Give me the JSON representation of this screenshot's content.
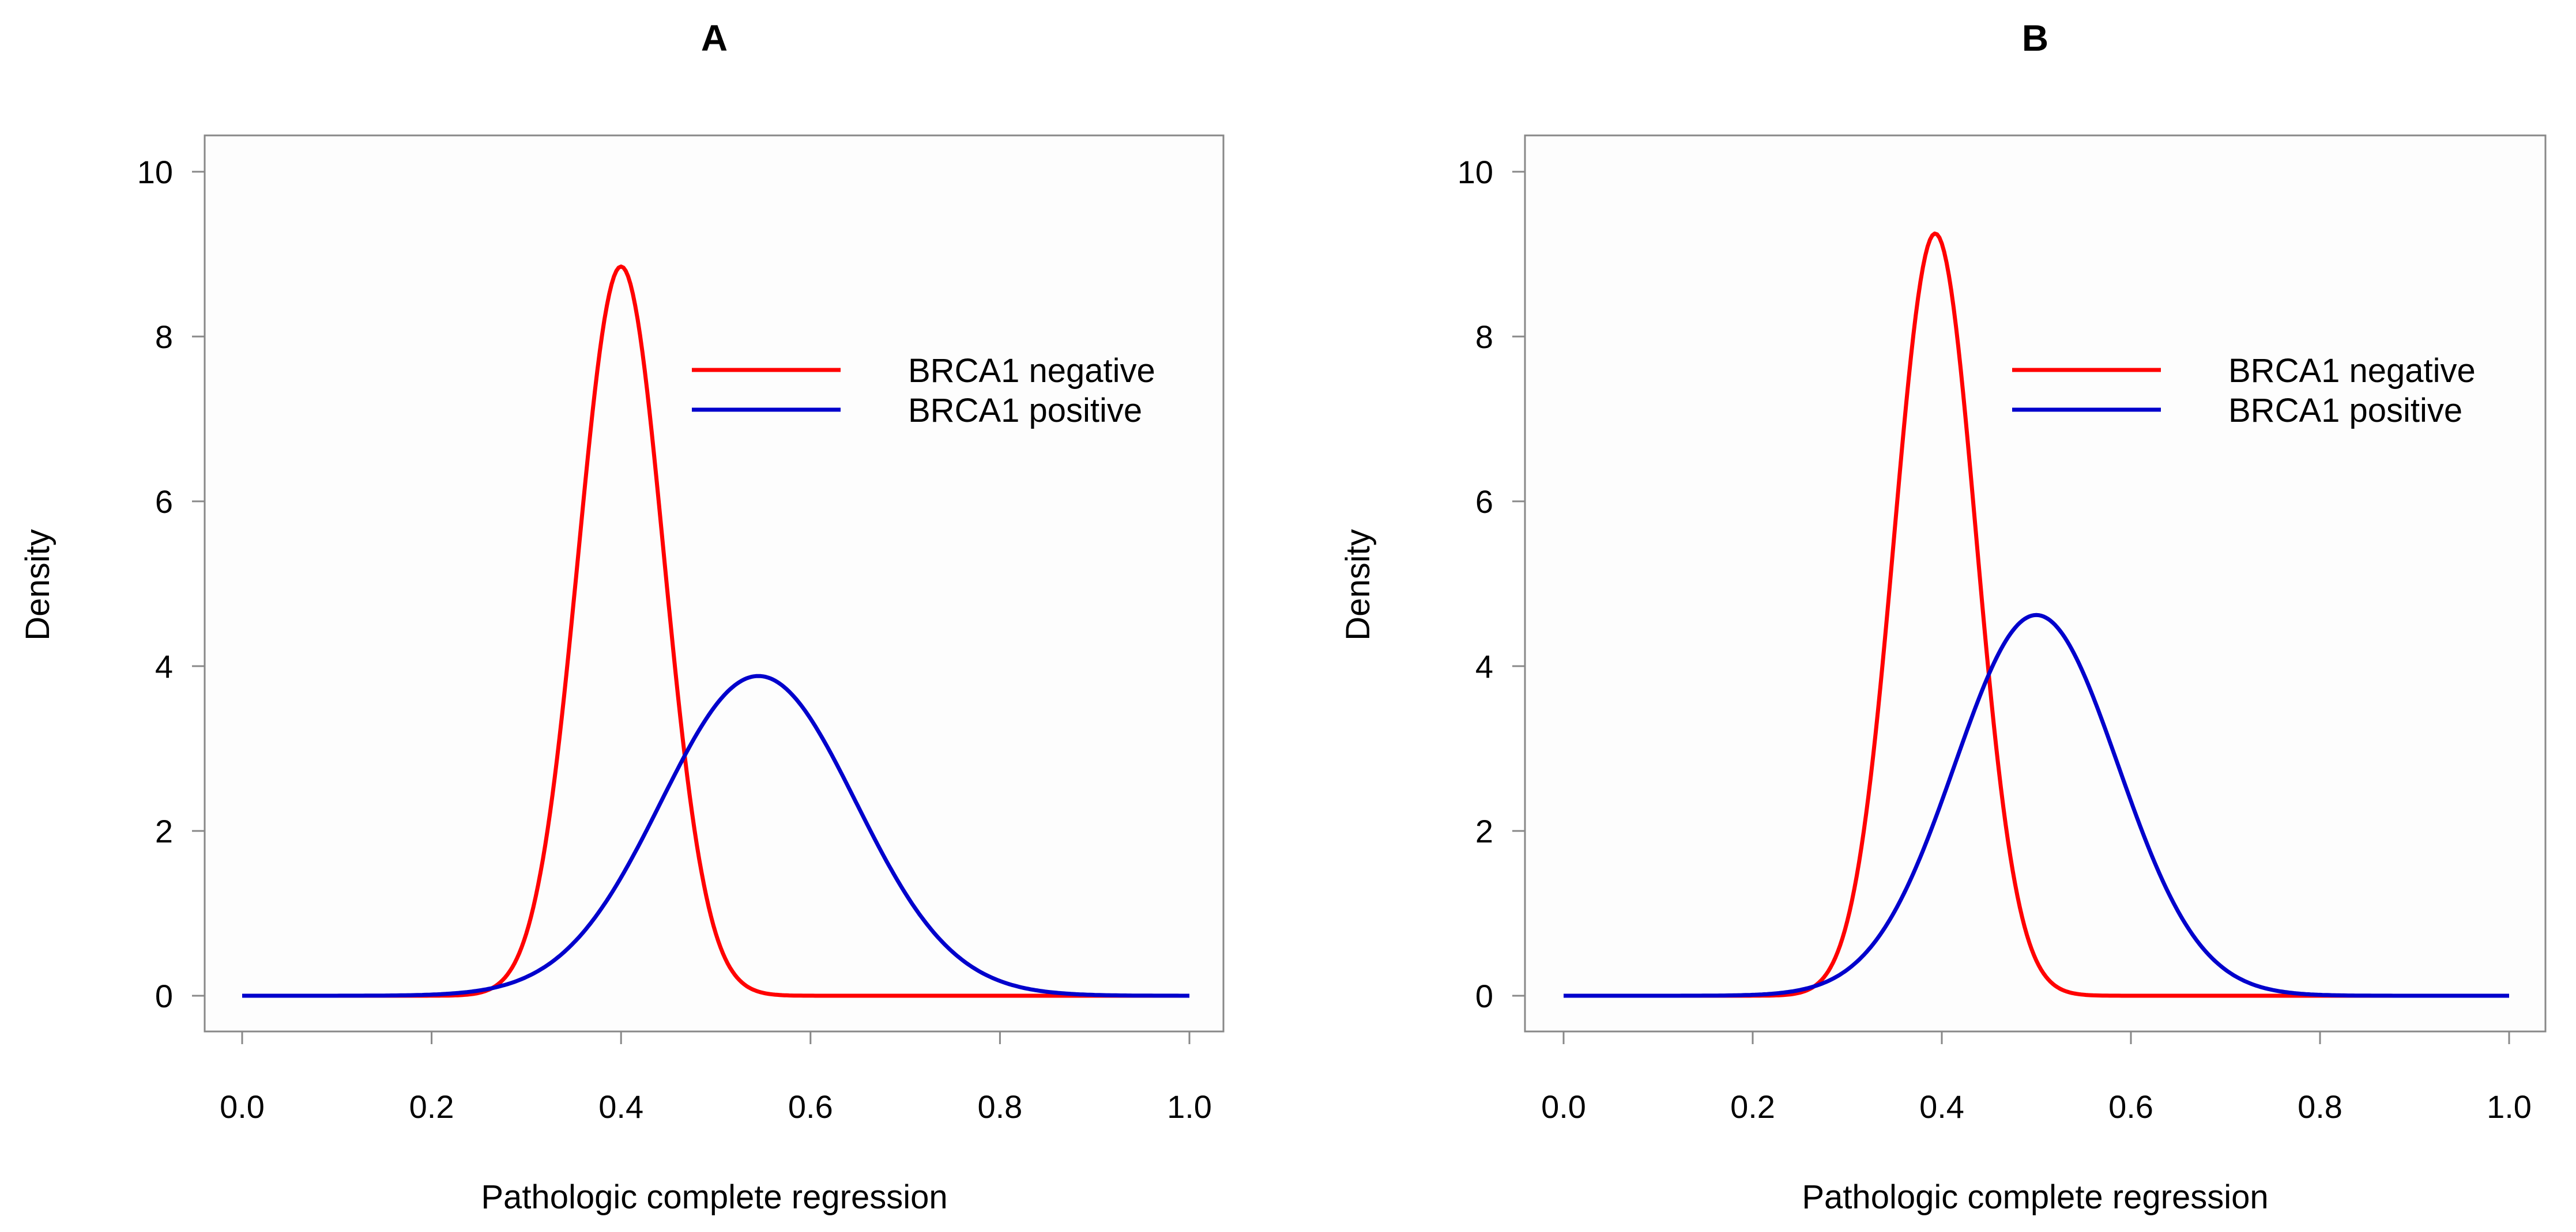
{
  "chart_data": [
    {
      "type": "line",
      "title": "A",
      "xlabel": "Pathologic complete regression",
      "ylabel": "Density",
      "xlim": [
        0.0,
        1.0
      ],
      "ylim": [
        0,
        10
      ],
      "xticks": [
        "0.0",
        "0.2",
        "0.4",
        "0.6",
        "0.8",
        "1.0"
      ],
      "yticks": [
        "0",
        "2",
        "4",
        "6",
        "8",
        "10"
      ],
      "legend_position": "top-right",
      "series": [
        {
          "name": "BRCA1 negative",
          "color": "#ff0000",
          "distribution": "normal",
          "mean": 0.4,
          "peak": 8.85,
          "support": [
            0.0,
            1.0
          ]
        },
        {
          "name": "BRCA1 positive",
          "color": "#0000cc",
          "distribution": "normal",
          "mean": 0.545,
          "peak": 3.88,
          "support": [
            0.0,
            1.0
          ]
        }
      ]
    },
    {
      "type": "line",
      "title": "B",
      "xlabel": "Pathologic complete regression",
      "ylabel": "Density",
      "xlim": [
        0.0,
        1.0
      ],
      "ylim": [
        0,
        10
      ],
      "xticks": [
        "0.0",
        "0.2",
        "0.4",
        "0.6",
        "0.8",
        "1.0"
      ],
      "yticks": [
        "0",
        "2",
        "4",
        "6",
        "8",
        "10"
      ],
      "legend_position": "top-right",
      "series": [
        {
          "name": "BRCA1 negative",
          "color": "#ff0000",
          "distribution": "normal",
          "mean": 0.393,
          "peak": 9.25,
          "support": [
            0.0,
            1.0
          ]
        },
        {
          "name": "BRCA1 positive",
          "color": "#0000cc",
          "distribution": "normal",
          "mean": 0.5,
          "peak": 4.62,
          "support": [
            0.0,
            1.0
          ]
        }
      ]
    }
  ]
}
